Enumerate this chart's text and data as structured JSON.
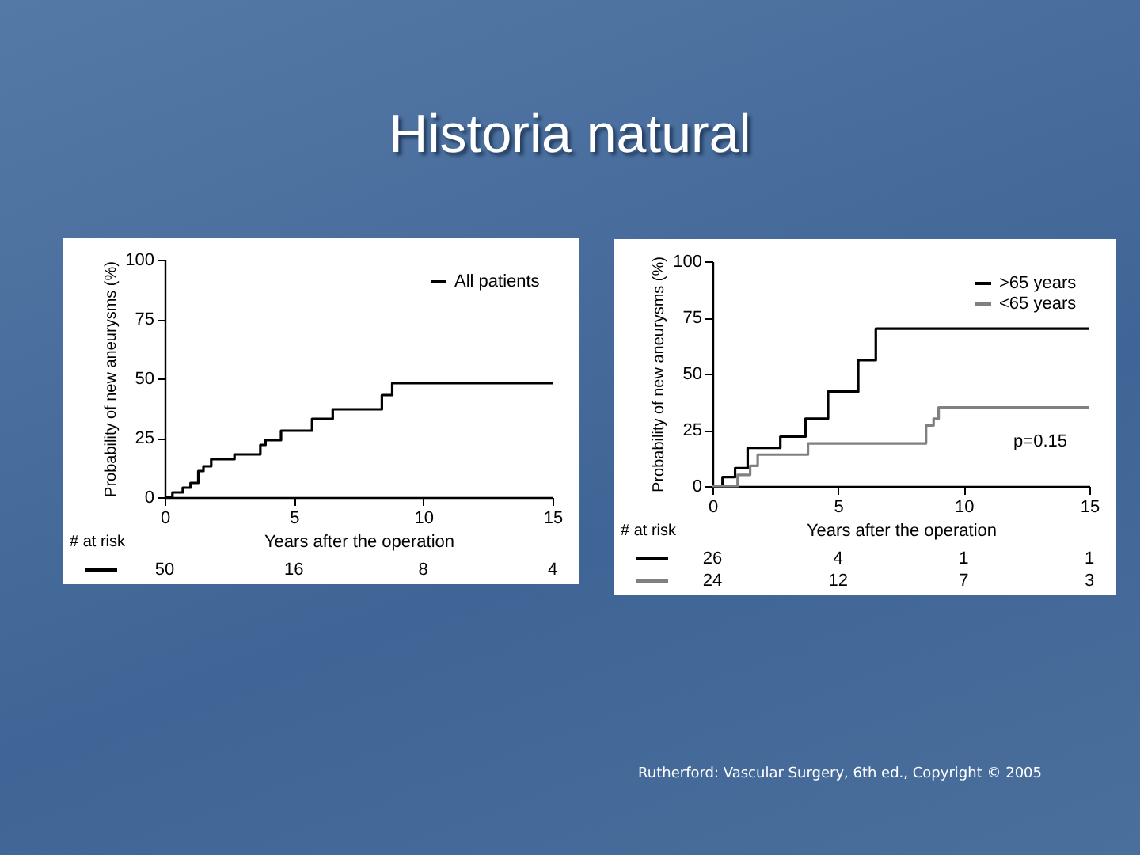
{
  "chart_data": [
    {
      "type": "step",
      "title": "Historia natural",
      "xlabel": "Years after the operation",
      "ylabel": "Probability of new aneurysms (%)",
      "xlim": [
        0,
        15
      ],
      "ylim": [
        0,
        100
      ],
      "xticks": [
        0,
        5,
        10,
        15
      ],
      "yticks": [
        0,
        25,
        50,
        75,
        100
      ],
      "grid": false,
      "legend": "top right",
      "series": [
        {
          "name": "All patients",
          "color": "#000000",
          "x": [
            0,
            0.3,
            0.7,
            1.0,
            1.3,
            1.5,
            1.8,
            2.7,
            3.7,
            3.9,
            4.5,
            5.7,
            6.5,
            8.4,
            8.8,
            15
          ],
          "values": [
            0,
            2,
            4,
            6,
            11,
            13,
            16,
            18,
            22,
            24,
            28,
            33,
            37,
            43,
            48,
            48
          ]
        }
      ],
      "annotations": [
        "# at risk",
        "50 16 8 4"
      ]
    },
    {
      "type": "step",
      "xlabel": "Years after the operation",
      "ylabel": "Probability of new aneurysms (%)",
      "xlim": [
        0,
        15
      ],
      "ylim": [
        0,
        100
      ],
      "xticks": [
        0,
        5,
        10,
        15
      ],
      "yticks": [
        0,
        25,
        50,
        75,
        100
      ],
      "grid": false,
      "legend": "top right",
      "series": [
        {
          "name": ">65 years",
          "color": "#000000",
          "x": [
            0,
            0.4,
            0.9,
            1.4,
            2.7,
            3.7,
            4.6,
            5.8,
            6.5,
            15
          ],
          "values": [
            0,
            4,
            8,
            17,
            22,
            30,
            42,
            56,
            70,
            70
          ]
        },
        {
          "name": "<65 years",
          "color": "#808080",
          "x": [
            0,
            1.0,
            1.5,
            1.8,
            3.8,
            8.5,
            8.8,
            9.0,
            15
          ],
          "values": [
            0,
            5,
            9,
            14,
            19,
            27,
            30,
            35,
            35
          ]
        }
      ],
      "annotations": [
        "# at risk",
        "26 4 1 1",
        "24 12 7 3",
        "p=0.15",
        "Rutherford: Vascular Surgery, 6th ed., Copyright © 2005"
      ]
    }
  ]
}
